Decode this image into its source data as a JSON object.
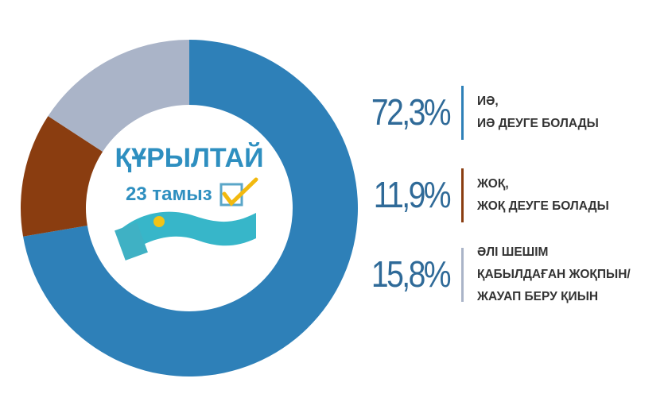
{
  "chart_data": {
    "type": "pie",
    "categories": [
      "ИӘ,\nИӘ ДЕУГЕ БОЛАДЫ",
      "ЖОҚ,\nЖОҚ ДЕУГЕ БОЛАДЫ",
      "ӘЛІ ШЕШІМ\nҚАБЫЛДАҒАН ЖОҚПЫН/\nЖАУАП БЕРУ ҚИЫН"
    ],
    "values": [
      72.3,
      11.9,
      15.8
    ],
    "value_labels": [
      "72,3%",
      "11,9%",
      "15,8%"
    ],
    "colors": [
      "#2e80b8",
      "#8a3d10",
      "#aab4c8"
    ],
    "center_logo": {
      "title": "ҚҰРЫЛТАЙ",
      "subtitle": "23 тамыз"
    }
  }
}
